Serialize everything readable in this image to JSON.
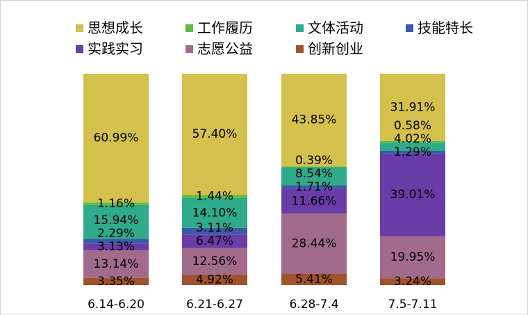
{
  "chart_data": {
    "type": "bar",
    "stacked": true,
    "categories": [
      "6.14-6.20",
      "6.21-6.27",
      "6.28-7.4",
      "7.5-7.11"
    ],
    "series": [
      {
        "name": "创新创业",
        "color": "#A0522D",
        "values": [
          3.35,
          4.92,
          5.41,
          3.24
        ],
        "labels": [
          "3.35%",
          "4.92%",
          "5.41%",
          "3.24%"
        ]
      },
      {
        "name": "志愿公益",
        "color": "#A26B8C",
        "values": [
          13.14,
          12.56,
          28.44,
          19.95
        ],
        "labels": [
          "13.14%",
          "12.56%",
          "28.44%",
          "19.95%"
        ]
      },
      {
        "name": "实践实习",
        "color": "#6A3CA8",
        "values": [
          3.13,
          6.47,
          11.66,
          39.01
        ],
        "labels": [
          "3.13%",
          "6.47%",
          "11.66%",
          "39.01%"
        ]
      },
      {
        "name": "技能特长",
        "color": "#3B5BA9",
        "values": [
          2.29,
          3.11,
          1.71,
          1.29
        ],
        "labels": [
          "2.29%",
          "3.11%",
          "1.71%",
          "1.29%"
        ]
      },
      {
        "name": "文体活动",
        "color": "#2FAA8A",
        "values": [
          15.94,
          14.1,
          8.54,
          4.02
        ],
        "labels": [
          "15.94%",
          "14.10%",
          "8.54%",
          "4.02%"
        ]
      },
      {
        "name": "工作履历",
        "color": "#5BBF3E",
        "values": [
          1.16,
          1.44,
          0.39,
          0.58
        ],
        "labels": [
          "1.16%",
          "1.44%",
          "0.39%",
          "0.58%"
        ]
      },
      {
        "name": "思想成长",
        "color": "#D3C04D",
        "values": [
          60.99,
          57.4,
          43.85,
          31.91
        ],
        "labels": [
          "60.99%",
          "57.40%",
          "43.85%",
          "31.91%"
        ]
      }
    ],
    "legend": {
      "position": "top",
      "order": [
        "思想成长",
        "工作履历",
        "文体活动",
        "技能特长",
        "实践实习",
        "志愿公益",
        "创新创业"
      ]
    },
    "ylim": [
      0,
      100
    ],
    "grid": false,
    "axes_visible": false
  }
}
